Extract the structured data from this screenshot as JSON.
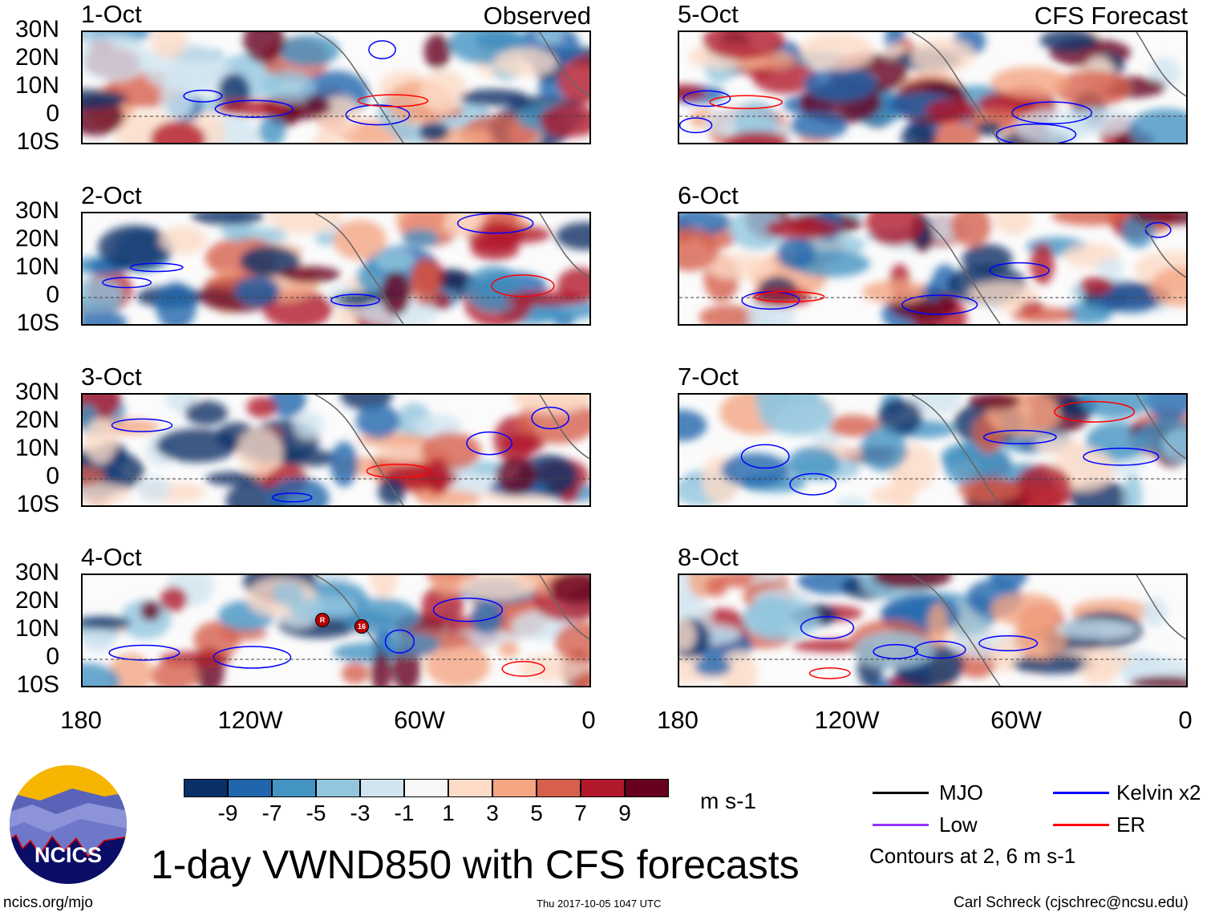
{
  "figure_title": "1-day VWND850 with CFS forecasts",
  "columns": [
    {
      "label": "Observed",
      "panels": [
        "1-Oct",
        "2-Oct",
        "3-Oct",
        "4-Oct"
      ]
    },
    {
      "label": "CFS Forecast",
      "panels": [
        "5-Oct",
        "6-Oct",
        "7-Oct",
        "8-Oct"
      ]
    }
  ],
  "lat_labels": [
    "30N",
    "20N",
    "10N",
    "0",
    "10S"
  ],
  "lon_labels": [
    "180",
    "120W",
    "60W",
    "0"
  ],
  "storm_markers": [
    {
      "panel": "4-Oct",
      "label": "R"
    },
    {
      "panel": "4-Oct",
      "label": "16"
    }
  ],
  "colorbar": {
    "colors": [
      "#0a3067",
      "#2166ac",
      "#4393c3",
      "#92c5de",
      "#d1e5f0",
      "#f7f7f7",
      "#fddbc7",
      "#f4a582",
      "#d6604d",
      "#b2182b",
      "#67001f"
    ],
    "labels": [
      "-9",
      "-7",
      "-5",
      "-3",
      "-1",
      "1",
      "3",
      "5",
      "7",
      "9"
    ],
    "units": "m s-1"
  },
  "legend": {
    "items": [
      {
        "label": "MJO",
        "color": "#000000"
      },
      {
        "label": "Kelvin x2",
        "color": "#0000ff"
      },
      {
        "label": "Low",
        "color": "#9933ff"
      },
      {
        "label": "ER",
        "color": "#ff0000"
      }
    ],
    "note": "Contours at 2, 6 m s-1"
  },
  "logo_text": "NCICS",
  "footer": {
    "url": "ncics.org/mjo",
    "timestamp": "Thu 2017-10-05 1047 UTC",
    "credit": "Carl Schreck (cjschrec@ncsu.edu)"
  }
}
